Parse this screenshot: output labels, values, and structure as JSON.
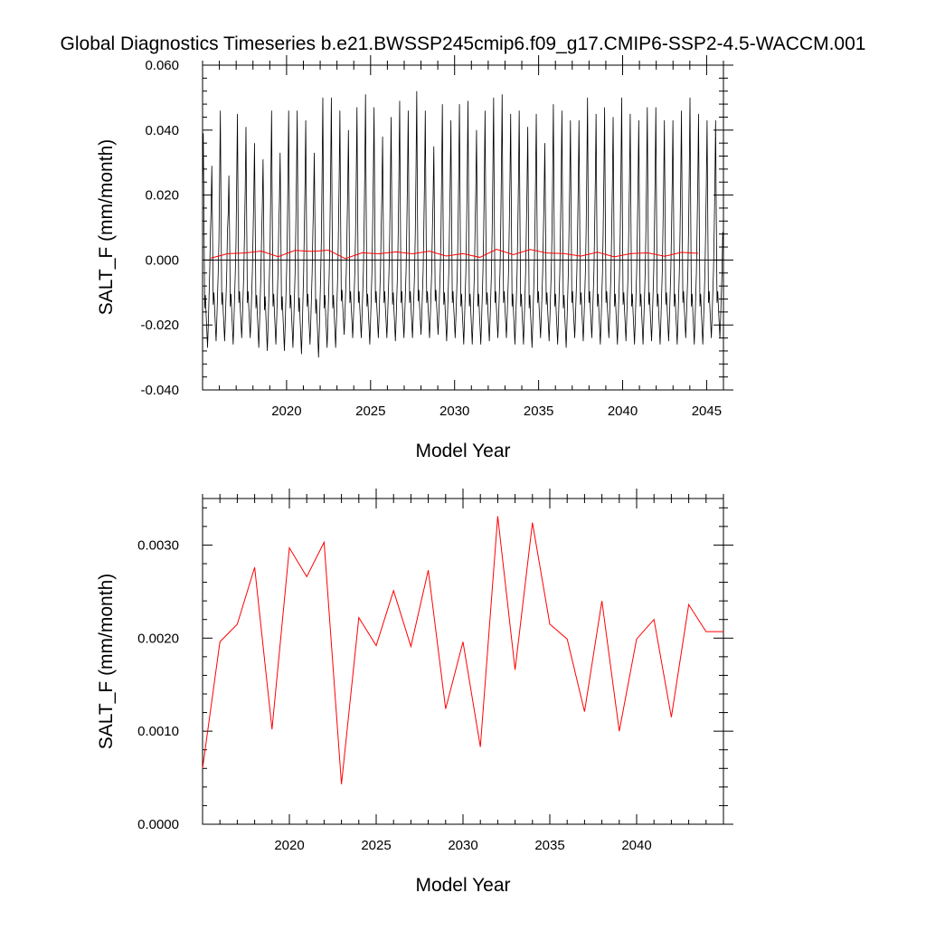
{
  "page": {
    "title": "Global Diagnostics Timeseries b.e21.BWSSP245cmip6.f09_g17.CMIP6-SSP2-4.5-WACCM.001"
  },
  "chart_data": [
    {
      "type": "line",
      "title": "Global Diagnostics Timeseries b.e21.BWSSP245cmip6.f09_g17.CMIP6-SSP2-4.5-WACCM.001",
      "xlabel": "Model Year",
      "ylabel": "SALT_F (mm/month)",
      "xlim": [
        2015.0,
        2046.0
      ],
      "ylim": [
        -0.04,
        0.06
      ],
      "xticks": [
        2020,
        2025,
        2030,
        2035,
        2040,
        2045
      ],
      "xtick_labels": [
        "2020",
        "2025",
        "2030",
        "2035",
        "2040",
        "2045"
      ],
      "yticks": [
        -0.04,
        -0.02,
        0.0,
        0.02,
        0.04,
        0.06
      ],
      "ytick_labels": [
        "-0.040",
        "-0.020",
        "0.000",
        "0.020",
        "0.040",
        "0.060"
      ],
      "reference_line": 0.0,
      "grid": false,
      "series": [
        {
          "color": "#000000",
          "kind": "monthly",
          "start_year": 2015.0,
          "cycle_peak": [
            0.039,
            0.029,
            0.046,
            0.026,
            0.045,
            0.041,
            0.036,
            0.031,
            0.046,
            0.033,
            0.046,
            0.046,
            0.043,
            0.033,
            0.05,
            0.05,
            0.046,
            0.04,
            0.047,
            0.051,
            0.047,
            0.038,
            0.044,
            0.049,
            0.046,
            0.052,
            0.046,
            0.035,
            0.048,
            0.043,
            0.048,
            0.049,
            0.04,
            0.046,
            0.05,
            0.051,
            0.045,
            0.046,
            0.041,
            0.045,
            0.036,
            0.048,
            0.046,
            0.043,
            0.043,
            0.05,
            0.045,
            0.047,
            0.044,
            0.05,
            0.045,
            0.043,
            0.047,
            0.047,
            0.043,
            0.043,
            0.046,
            0.05,
            0.045,
            0.043,
            0.043
          ],
          "cycle_trough": [
            -0.027,
            -0.025,
            -0.025,
            -0.026,
            -0.024,
            -0.024,
            -0.027,
            -0.028,
            -0.026,
            -0.028,
            -0.027,
            -0.029,
            -0.026,
            -0.03,
            -0.027,
            -0.027,
            -0.023,
            -0.024,
            -0.024,
            -0.026,
            -0.024,
            -0.024,
            -0.025,
            -0.024,
            -0.024,
            -0.023,
            -0.024,
            -0.023,
            -0.025,
            -0.024,
            -0.026,
            -0.026,
            -0.026,
            -0.025,
            -0.024,
            -0.024,
            -0.026,
            -0.026,
            -0.027,
            -0.024,
            -0.025,
            -0.026,
            -0.027,
            -0.024,
            -0.025,
            -0.024,
            -0.026,
            -0.024,
            -0.026,
            -0.025,
            -0.026,
            -0.026,
            -0.025,
            -0.026,
            -0.025,
            -0.026,
            -0.024,
            -0.026,
            -0.026,
            -0.024,
            -0.024
          ]
        },
        {
          "color": "#ff0000",
          "kind": "annual",
          "x": [
            2015.5,
            2016.5,
            2017.5,
            2018.5,
            2019.5,
            2020.5,
            2021.5,
            2022.5,
            2023.5,
            2024.5,
            2025.5,
            2026.5,
            2027.5,
            2028.5,
            2029.5,
            2030.5,
            2031.5,
            2032.5,
            2033.5,
            2034.5,
            2035.5,
            2036.5,
            2037.5,
            2038.5,
            2039.5,
            2040.5,
            2041.5,
            2042.5,
            2043.5,
            2044.5
          ],
          "values": [
            0.0006,
            0.00196,
            0.00215,
            0.00276,
            0.00102,
            0.00297,
            0.00266,
            0.00303,
            0.00043,
            0.00222,
            0.00192,
            0.00251,
            0.00191,
            0.00273,
            0.00124,
            0.00196,
            0.00083,
            0.00331,
            0.00166,
            0.00324,
            0.00215,
            0.00199,
            0.00121,
            0.0024,
            0.001,
            0.00199,
            0.0022,
            0.00115,
            0.00236,
            0.00207
          ]
        }
      ]
    },
    {
      "type": "line",
      "xlabel": "Model Year",
      "ylabel": "SALT_F (mm/month)",
      "xlim": [
        2015.0,
        2045.0
      ],
      "ylim": [
        0.0,
        0.0035
      ],
      "xticks": [
        2020,
        2025,
        2030,
        2035,
        2040
      ],
      "xtick_labels": [
        "2020",
        "2025",
        "2030",
        "2035",
        "2040"
      ],
      "yticks": [
        0.0,
        0.001,
        0.002,
        0.003
      ],
      "ytick_labels": [
        "0.0000",
        "0.0010",
        "0.0020",
        "0.0030"
      ],
      "grid": false,
      "series": [
        {
          "color": "#ff0000",
          "x": [
            2015.0,
            2016.0,
            2017.0,
            2018.0,
            2019.0,
            2020.0,
            2021.0,
            2022.0,
            2023.0,
            2024.0,
            2025.0,
            2026.0,
            2027.0,
            2028.0,
            2029.0,
            2030.0,
            2031.0,
            2032.0,
            2033.0,
            2034.0,
            2035.0,
            2036.0,
            2037.0,
            2038.0,
            2039.0,
            2040.0,
            2041.0,
            2042.0,
            2043.0,
            2044.0,
            2045.0
          ],
          "values": [
            0.0006,
            0.00196,
            0.00215,
            0.00276,
            0.00102,
            0.00297,
            0.00266,
            0.00303,
            0.00043,
            0.00222,
            0.00192,
            0.00251,
            0.00191,
            0.00273,
            0.00124,
            0.00196,
            0.00083,
            0.00331,
            0.00166,
            0.00324,
            0.00215,
            0.00199,
            0.00121,
            0.0024,
            0.001,
            0.00199,
            0.0022,
            0.00115,
            0.00236,
            0.00207,
            0.00207
          ]
        }
      ]
    }
  ]
}
